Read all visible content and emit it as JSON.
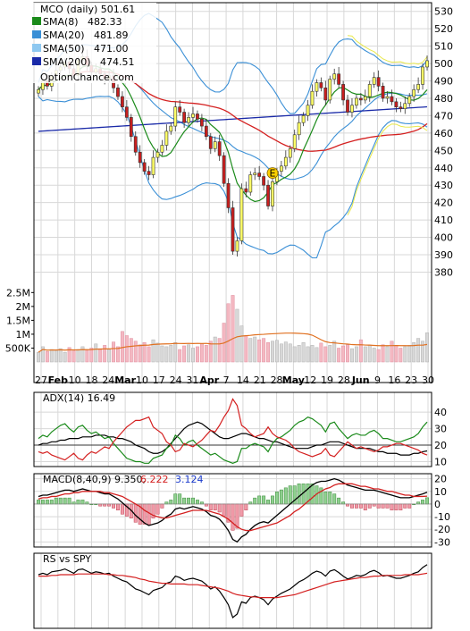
{
  "chart_data": [
    {
      "type": "candlestick",
      "title": "MCO (daily) 501.61",
      "watermark": "OptionChance.com",
      "ylim": [
        372,
        535
      ],
      "yticks": [
        380,
        390,
        400,
        410,
        420,
        430,
        440,
        450,
        460,
        470,
        480,
        490,
        500,
        510,
        520,
        530
      ],
      "x_labels": [
        "27",
        "Feb",
        "10",
        "18",
        "24",
        "Mar",
        "10",
        "17",
        "24",
        "31",
        "Apr",
        "7",
        "14",
        "21",
        "28",
        "May",
        "12",
        "19",
        "28",
        "Jun",
        "9",
        "16",
        "23",
        "30"
      ],
      "legend": [
        {
          "name": "SMA(8)",
          "value": "482.33",
          "color": "#1a8a1a"
        },
        {
          "name": "SMA(20)",
          "value": "481.89",
          "color": "#3a8fd6"
        },
        {
          "name": "SMA(50)",
          "value": "471.00",
          "color": "#8ec8f0"
        },
        {
          "name": "SMA(200)",
          "value": "474.51",
          "color": "#1a2aa8"
        }
      ],
      "colors": {
        "up": "#ffff66",
        "down": "#c81e1e",
        "sma8": "#1a8a1a",
        "bb": "#3a8fd6",
        "sma50": "#d42020",
        "sma200": "#1a2aa8",
        "bb_ext": "#e8e84a"
      },
      "event_marker": "E",
      "closes": [
        485,
        490,
        487,
        493,
        496,
        498,
        501,
        497,
        493,
        502,
        504,
        499,
        495,
        497,
        494,
        491,
        493,
        486,
        481,
        475,
        469,
        458,
        449,
        443,
        438,
        436,
        446,
        449,
        453,
        461,
        464,
        475,
        472,
        466,
        469,
        471,
        468,
        464,
        458,
        451,
        455,
        447,
        431,
        417,
        392,
        398,
        428,
        426,
        436,
        437,
        435,
        430,
        418,
        432,
        438,
        441,
        446,
        451,
        459,
        466,
        470,
        476,
        484,
        489,
        486,
        479,
        491,
        494,
        488,
        479,
        472,
        476,
        480,
        479,
        481,
        488,
        492,
        487,
        480,
        481,
        478,
        475,
        474,
        477,
        481,
        485,
        488,
        498,
        501.61
      ]
    },
    {
      "type": "bar",
      "title": "Volume",
      "yticks": [
        "2.5M",
        "2M",
        "1.5M",
        "1M",
        "500K"
      ],
      "ylim": [
        0,
        2.8
      ],
      "values_m": [
        0.35,
        0.55,
        0.38,
        0.45,
        0.42,
        0.48,
        0.35,
        0.52,
        0.4,
        0.45,
        0.55,
        0.42,
        0.5,
        0.65,
        0.48,
        0.6,
        0.45,
        0.72,
        0.55,
        1.1,
        0.95,
        0.85,
        0.75,
        0.62,
        0.7,
        0.55,
        0.8,
        0.68,
        0.58,
        0.55,
        0.6,
        0.7,
        0.45,
        0.58,
        0.62,
        0.5,
        0.55,
        0.65,
        0.6,
        0.75,
        0.9,
        0.85,
        1.4,
        2.1,
        2.4,
        1.9,
        1.3,
        0.95,
        0.85,
        0.9,
        0.8,
        0.85,
        0.7,
        0.75,
        0.78,
        0.65,
        0.72,
        0.65,
        0.55,
        0.6,
        0.7,
        0.55,
        0.6,
        0.52,
        0.68,
        0.55,
        0.6,
        0.75,
        0.5,
        0.58,
        0.62,
        0.48,
        0.55,
        0.8,
        0.55,
        0.6,
        0.5,
        0.45,
        0.62,
        0.55,
        0.75,
        0.6,
        0.5,
        0.55,
        0.6,
        0.7,
        0.85,
        0.75,
        1.05
      ],
      "avg_color": "#e07020"
    },
    {
      "type": "line",
      "title": "ADX(14) 16.49",
      "yticks": [
        40,
        30,
        20,
        10
      ],
      "ylim": [
        7,
        52
      ],
      "series": [
        {
          "name": "ADX",
          "color": "#000000",
          "values": [
            20,
            21,
            21,
            22,
            22,
            23,
            23,
            24,
            24,
            24,
            25,
            25,
            25,
            26,
            26,
            26,
            25,
            25,
            24,
            24,
            23,
            22,
            20,
            19,
            18,
            16,
            15,
            15,
            16,
            18,
            21,
            24,
            27,
            30,
            32,
            33,
            34,
            33,
            31,
            29,
            27,
            25,
            24,
            24,
            25,
            26,
            27,
            27,
            26,
            25,
            24,
            24,
            23,
            22,
            22,
            21,
            20,
            19,
            18,
            18,
            18,
            18,
            19,
            20,
            20,
            21,
            22,
            22,
            22,
            21,
            20,
            19,
            18,
            18,
            18,
            18,
            17,
            16,
            16,
            15,
            15,
            15,
            14,
            14,
            14,
            15,
            15,
            16,
            16.49
          ]
        },
        {
          "name": "+DI",
          "color": "#1a8a1a",
          "values": [
            24,
            26,
            25,
            28,
            30,
            32,
            33,
            30,
            28,
            31,
            32,
            29,
            27,
            28,
            26,
            24,
            25,
            21,
            18,
            15,
            12,
            11,
            10,
            10,
            9,
            9,
            12,
            13,
            14,
            18,
            20,
            26,
            24,
            20,
            22,
            23,
            20,
            18,
            16,
            14,
            15,
            13,
            11,
            10,
            9,
            10,
            18,
            18,
            20,
            21,
            20,
            19,
            16,
            21,
            24,
            25,
            27,
            29,
            32,
            34,
            35,
            37,
            36,
            34,
            32,
            28,
            33,
            34,
            30,
            27,
            24,
            26,
            27,
            26,
            26,
            28,
            29,
            27,
            24,
            24,
            23,
            22,
            22,
            23,
            24,
            25,
            27,
            31,
            34
          ]
        },
        {
          "name": "-DI",
          "color": "#d42020",
          "values": [
            16,
            15,
            16,
            14,
            13,
            12,
            11,
            13,
            15,
            12,
            11,
            14,
            16,
            15,
            17,
            19,
            18,
            22,
            25,
            28,
            31,
            33,
            35,
            35,
            36,
            37,
            31,
            29,
            27,
            22,
            20,
            16,
            17,
            21,
            20,
            19,
            21,
            23,
            26,
            29,
            28,
            32,
            37,
            41,
            48,
            44,
            32,
            30,
            27,
            25,
            26,
            27,
            31,
            27,
            25,
            24,
            23,
            21,
            18,
            16,
            15,
            14,
            13,
            14,
            15,
            18,
            14,
            13,
            16,
            19,
            22,
            20,
            18,
            19,
            18,
            17,
            16,
            17,
            19,
            19,
            20,
            21,
            21,
            20,
            19,
            18,
            17,
            15,
            14
          ]
        }
      ]
    },
    {
      "type": "bar",
      "title": "MACD(8,40,9) 9.350,",
      "values_text": [
        "6.222",
        "3.124"
      ],
      "value_colors": [
        "#d42020",
        "#1a3acc"
      ],
      "yticks": [
        20,
        10,
        0,
        -10,
        -20,
        -30
      ],
      "ylim": [
        -34,
        24
      ],
      "series": [
        {
          "name": "MACD",
          "color": "#000000",
          "values": [
            6,
            7,
            7,
            8,
            9,
            10,
            11,
            11,
            10,
            11,
            12,
            11,
            10,
            10,
            9,
            8,
            8,
            6,
            4,
            1,
            -2,
            -5,
            -9,
            -12,
            -15,
            -17,
            -16,
            -15,
            -13,
            -10,
            -8,
            -4,
            -3,
            -4,
            -3,
            -2,
            -3,
            -4,
            -6,
            -9,
            -10,
            -12,
            -16,
            -21,
            -28,
            -30,
            -26,
            -24,
            -20,
            -17,
            -15,
            -14,
            -15,
            -12,
            -9,
            -6,
            -3,
            0,
            3,
            6,
            9,
            12,
            15,
            17,
            18,
            18,
            19,
            20,
            19,
            17,
            15,
            14,
            13,
            12,
            11,
            11,
            11,
            10,
            9,
            8,
            7,
            6,
            5,
            5,
            5,
            6,
            7,
            8,
            9.35
          ]
        },
        {
          "name": "Signal",
          "color": "#d42020",
          "values": [
            4,
            5,
            5,
            6,
            6,
            7,
            8,
            8,
            9,
            9,
            10,
            10,
            10,
            10,
            10,
            9,
            9,
            8,
            7,
            6,
            4,
            2,
            0,
            -2,
            -5,
            -7,
            -9,
            -10,
            -11,
            -11,
            -10,
            -9,
            -8,
            -7,
            -6,
            -5,
            -5,
            -5,
            -5,
            -6,
            -7,
            -8,
            -10,
            -12,
            -15,
            -18,
            -20,
            -21,
            -21,
            -20,
            -19,
            -18,
            -17,
            -16,
            -15,
            -13,
            -11,
            -9,
            -6,
            -4,
            -1,
            2,
            5,
            8,
            10,
            12,
            13,
            15,
            16,
            16,
            16,
            16,
            15,
            14,
            14,
            13,
            12,
            12,
            11,
            10,
            10,
            9,
            8,
            7,
            7,
            6,
            6,
            6,
            6.22
          ]
        }
      ]
    },
    {
      "type": "line",
      "title": "RS vs SPY",
      "series": [
        {
          "name": "RS",
          "color": "#000000",
          "values": [
            0.5,
            0.52,
            0.5,
            0.54,
            0.55,
            0.56,
            0.58,
            0.55,
            0.52,
            0.57,
            0.58,
            0.55,
            0.52,
            0.54,
            0.53,
            0.51,
            0.52,
            0.48,
            0.45,
            0.42,
            0.4,
            0.35,
            0.3,
            0.28,
            0.25,
            0.22,
            0.28,
            0.3,
            0.32,
            0.38,
            0.4,
            0.48,
            0.46,
            0.42,
            0.44,
            0.45,
            0.43,
            0.41,
            0.36,
            0.3,
            0.33,
            0.27,
            0.18,
            0.08,
            -0.1,
            -0.05,
            0.12,
            0.1,
            0.18,
            0.2,
            0.18,
            0.15,
            0.08,
            0.16,
            0.2,
            0.24,
            0.27,
            0.3,
            0.35,
            0.4,
            0.43,
            0.47,
            0.52,
            0.55,
            0.53,
            0.48,
            0.55,
            0.57,
            0.53,
            0.48,
            0.44,
            0.46,
            0.49,
            0.48,
            0.5,
            0.54,
            0.56,
            0.53,
            0.48,
            0.49,
            0.47,
            0.45,
            0.45,
            0.47,
            0.49,
            0.52,
            0.54,
            0.6,
            0.64
          ]
        },
        {
          "name": "RS SMA",
          "color": "#d42020",
          "values": [
            0.48,
            0.48,
            0.48,
            0.49,
            0.49,
            0.5,
            0.5,
            0.5,
            0.5,
            0.51,
            0.51,
            0.51,
            0.51,
            0.51,
            0.51,
            0.51,
            0.5,
            0.5,
            0.49,
            0.49,
            0.48,
            0.47,
            0.46,
            0.44,
            0.43,
            0.41,
            0.4,
            0.39,
            0.38,
            0.38,
            0.37,
            0.37,
            0.37,
            0.37,
            0.36,
            0.36,
            0.36,
            0.35,
            0.34,
            0.33,
            0.32,
            0.31,
            0.29,
            0.27,
            0.24,
            0.22,
            0.21,
            0.2,
            0.19,
            0.19,
            0.18,
            0.18,
            0.18,
            0.18,
            0.18,
            0.19,
            0.2,
            0.21,
            0.22,
            0.24,
            0.26,
            0.28,
            0.3,
            0.32,
            0.34,
            0.36,
            0.38,
            0.4,
            0.41,
            0.42,
            0.43,
            0.44,
            0.45,
            0.46,
            0.46,
            0.47,
            0.48,
            0.48,
            0.49,
            0.49,
            0.49,
            0.49,
            0.49,
            0.5,
            0.5,
            0.5,
            0.5,
            0.51,
            0.52
          ]
        }
      ]
    }
  ]
}
